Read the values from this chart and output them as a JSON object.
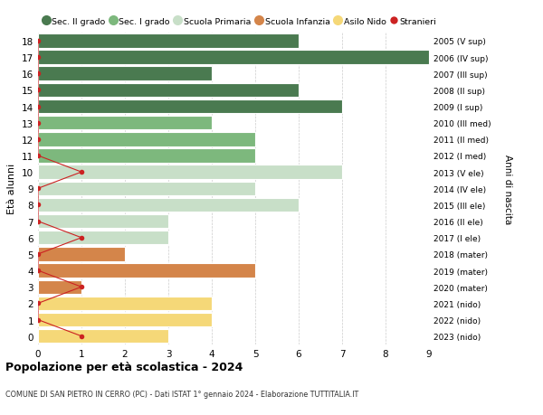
{
  "ages": [
    18,
    17,
    16,
    15,
    14,
    13,
    12,
    11,
    10,
    9,
    8,
    7,
    6,
    5,
    4,
    3,
    2,
    1,
    0
  ],
  "right_labels": [
    "2005 (V sup)",
    "2006 (IV sup)",
    "2007 (III sup)",
    "2008 (II sup)",
    "2009 (I sup)",
    "2010 (III med)",
    "2011 (II med)",
    "2012 (I med)",
    "2013 (V ele)",
    "2014 (IV ele)",
    "2015 (III ele)",
    "2016 (II ele)",
    "2017 (I ele)",
    "2018 (mater)",
    "2019 (mater)",
    "2020 (mater)",
    "2021 (nido)",
    "2022 (nido)",
    "2023 (nido)"
  ],
  "bar_values": [
    6,
    9,
    4,
    6,
    7,
    4,
    5,
    5,
    7,
    5,
    6,
    3,
    3,
    2,
    5,
    1,
    4,
    4,
    3
  ],
  "bar_colors": [
    "#4a7a50",
    "#4a7a50",
    "#4a7a50",
    "#4a7a50",
    "#4a7a50",
    "#7db87d",
    "#7db87d",
    "#7db87d",
    "#c8dfc8",
    "#c8dfc8",
    "#c8dfc8",
    "#c8dfc8",
    "#c8dfc8",
    "#d4854a",
    "#d4854a",
    "#d4854a",
    "#f5d878",
    "#f5d878",
    "#f5d878"
  ],
  "stranieri_x": [
    0,
    0,
    0,
    0,
    0,
    0,
    0,
    0,
    1,
    0,
    0,
    0,
    1,
    0,
    0,
    1,
    0,
    0,
    1
  ],
  "xlim": [
    0,
    9
  ],
  "ylim": [
    -0.5,
    18.5
  ],
  "ylabel_left": "Età alunni",
  "ylabel_right": "Anni di nascita",
  "title": "Popolazione per età scolastica - 2024",
  "subtitle": "COMUNE DI SAN PIETRO IN CERRO (PC) - Dati ISTAT 1° gennaio 2024 - Elaborazione TUTTITALIA.IT",
  "legend_labels": [
    "Sec. II grado",
    "Sec. I grado",
    "Scuola Primaria",
    "Scuola Infanzia",
    "Asilo Nido",
    "Stranieri"
  ],
  "legend_colors": [
    "#4a7a50",
    "#7db87d",
    "#c8dfc8",
    "#d4854a",
    "#f5d878",
    "#cc2222"
  ],
  "stranieri_color": "#cc2222",
  "grid_color": "#cccccc",
  "bg_color": "#ffffff"
}
